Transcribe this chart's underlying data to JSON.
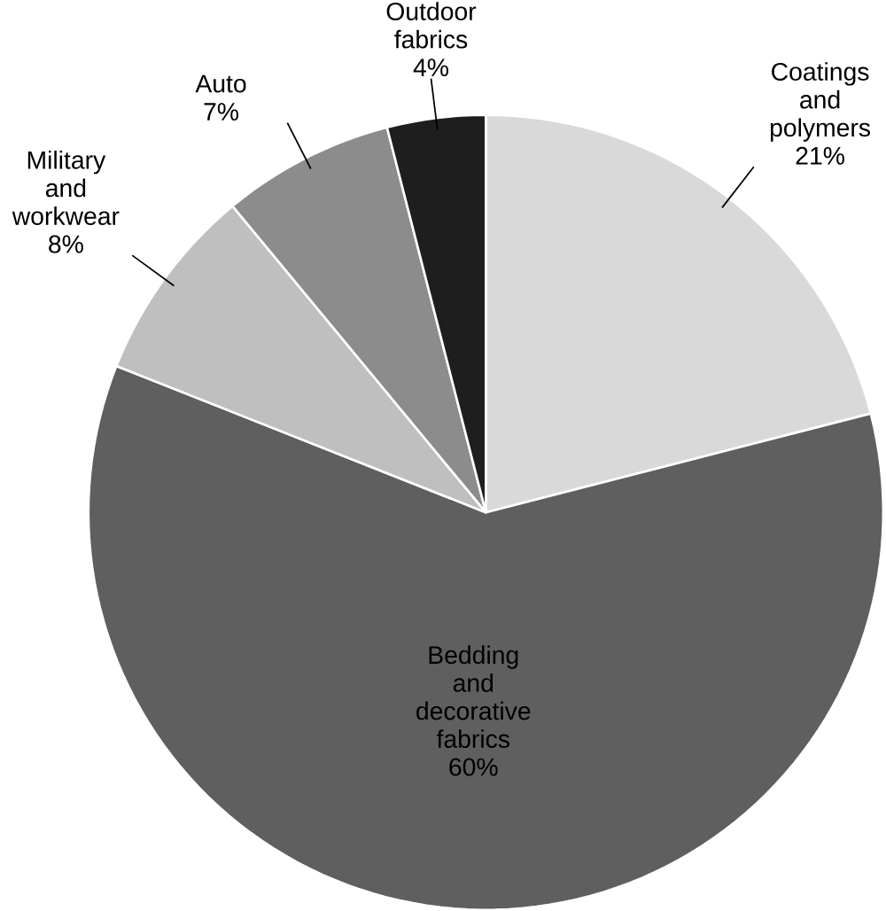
{
  "chart_data": {
    "type": "pie",
    "categories": [
      "Coatings and polymers",
      "Bedding and decorative fabrics",
      "Military and workwear",
      "Auto",
      "Outdoor fabrics"
    ],
    "values": [
      21,
      60,
      8,
      7,
      4
    ],
    "colors": [
      "#d9d9d9",
      "#5f5f5f",
      "#bfbfbf",
      "#8c8c8c",
      "#1e1e1e"
    ],
    "value_labels": [
      "21%",
      "60%",
      "8%",
      "7%",
      "4%"
    ]
  }
}
